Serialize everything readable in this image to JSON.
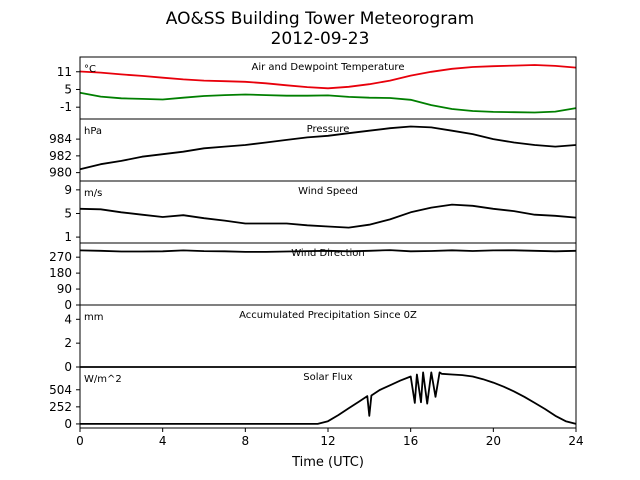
{
  "figure": {
    "title": "AO&SS Building Tower Meteorogram",
    "date": "2012-09-23",
    "xlabel": "Time (UTC)"
  },
  "chart_data": [
    {
      "type": "line",
      "title": "Air and Dewpoint Temperature",
      "unit": "°C",
      "xlim": [
        0,
        24
      ],
      "ylim": [
        -5,
        16
      ],
      "yticks": [
        11,
        5,
        -1
      ],
      "series": [
        {
          "color": "#e8000b",
          "x": [
            0,
            1,
            2,
            3,
            4,
            5,
            6,
            7,
            8,
            9,
            10,
            11,
            12,
            13,
            14,
            15,
            16,
            17,
            18,
            19,
            20,
            21,
            22,
            23,
            24
          ],
          "y": [
            11.1,
            10.7,
            10.1,
            9.6,
            9.0,
            8.4,
            8.0,
            7.8,
            7.6,
            7.1,
            6.4,
            5.8,
            5.4,
            5.9,
            6.8,
            8.0,
            9.7,
            11.0,
            12.0,
            12.6,
            12.9,
            13.1,
            13.3,
            13.0,
            12.4
          ]
        },
        {
          "color": "#007f00",
          "x": [
            0,
            1,
            2,
            3,
            4,
            5,
            6,
            7,
            8,
            9,
            10,
            11,
            12,
            13,
            14,
            15,
            16,
            17,
            18,
            19,
            20,
            21,
            22,
            23,
            24
          ],
          "y": [
            3.9,
            2.6,
            2.0,
            1.8,
            1.6,
            2.2,
            2.8,
            3.1,
            3.3,
            3.1,
            2.9,
            2.9,
            3.0,
            2.5,
            2.2,
            2.1,
            1.5,
            -0.3,
            -1.6,
            -2.3,
            -2.6,
            -2.7,
            -2.8,
            -2.5,
            -1.3
          ]
        }
      ]
    },
    {
      "type": "line",
      "title": "Pressure",
      "unit": "hPa",
      "xlim": [
        0,
        24
      ],
      "ylim": [
        979,
        986.4
      ],
      "yticks": [
        984,
        982,
        980
      ],
      "series": [
        {
          "color": "#000000",
          "x": [
            0,
            1,
            2,
            3,
            4,
            5,
            6,
            7,
            8,
            9,
            10,
            11,
            12,
            13,
            14,
            15,
            16,
            17,
            18,
            19,
            20,
            21,
            22,
            23,
            24
          ],
          "y": [
            980.4,
            981.0,
            981.4,
            981.9,
            982.2,
            982.5,
            982.9,
            983.1,
            983.3,
            983.6,
            983.9,
            984.2,
            984.4,
            984.7,
            985.0,
            985.3,
            985.5,
            985.4,
            985.0,
            984.6,
            984.0,
            983.6,
            983.3,
            983.1,
            983.3
          ]
        }
      ]
    },
    {
      "type": "line",
      "title": "Wind Speed",
      "unit": "m/s",
      "xlim": [
        0,
        24
      ],
      "ylim": [
        0,
        10.5
      ],
      "yticks": [
        9,
        5,
        1
      ],
      "series": [
        {
          "color": "#000000",
          "x": [
            0,
            1,
            2,
            3,
            4,
            5,
            6,
            7,
            8,
            9,
            10,
            11,
            12,
            13,
            14,
            15,
            16,
            17,
            18,
            19,
            20,
            21,
            22,
            23,
            24
          ],
          "y": [
            5.8,
            5.7,
            5.2,
            4.8,
            4.4,
            4.7,
            4.2,
            3.8,
            3.3,
            3.3,
            3.3,
            3.0,
            2.8,
            2.6,
            3.1,
            4.0,
            5.2,
            6.0,
            6.5,
            6.3,
            5.8,
            5.4,
            4.8,
            4.6,
            4.3
          ]
        }
      ]
    },
    {
      "type": "line",
      "title": "Wind Direction",
      "unit": "",
      "xlim": [
        0,
        24
      ],
      "ylim": [
        0,
        350
      ],
      "yticks": [
        270,
        180,
        90,
        0
      ],
      "series": [
        {
          "color": "#000000",
          "x": [
            0,
            1,
            2,
            3,
            4,
            5,
            6,
            7,
            8,
            9,
            10,
            11,
            12,
            13,
            14,
            15,
            16,
            17,
            18,
            19,
            20,
            21,
            22,
            23,
            24
          ],
          "y": [
            308,
            306,
            302,
            302,
            303,
            308,
            304,
            303,
            300,
            300,
            302,
            304,
            306,
            303,
            306,
            310,
            303,
            305,
            309,
            305,
            308,
            309,
            306,
            303,
            306
          ]
        }
      ]
    },
    {
      "type": "line",
      "title": "Accumulated Precipitation Since 0Z",
      "unit": "mm",
      "xlim": [
        0,
        24
      ],
      "ylim": [
        0,
        5.2
      ],
      "yticks": [
        4,
        2,
        0
      ],
      "series": [
        {
          "color": "#000000",
          "x": [
            0,
            24
          ],
          "y": [
            0,
            0
          ]
        }
      ]
    },
    {
      "type": "line",
      "title": "Solar Flux",
      "unit": "W/m^2",
      "xlim": [
        0,
        24
      ],
      "ylim": [
        -60,
        840
      ],
      "yticks": [
        504,
        252,
        0
      ],
      "series": [
        {
          "color": "#000000",
          "x": [
            0,
            11.5,
            12,
            12.5,
            13,
            13.5,
            13.9,
            14.0,
            14.1,
            14.5,
            15,
            15.5,
            16,
            16.2,
            16.3,
            16.5,
            16.6,
            16.8,
            17,
            17.2,
            17.4,
            17.5,
            18,
            18.5,
            19,
            19.5,
            20,
            20.5,
            21,
            21.5,
            22,
            22.5,
            23,
            23.5,
            24
          ],
          "y": [
            0,
            0,
            40,
            130,
            230,
            330,
            410,
            120,
            420,
            500,
            570,
            640,
            700,
            310,
            730,
            320,
            760,
            300,
            760,
            400,
            760,
            740,
            730,
            720,
            700,
            660,
            610,
            550,
            480,
            400,
            310,
            220,
            120,
            40,
            0
          ]
        }
      ]
    }
  ]
}
